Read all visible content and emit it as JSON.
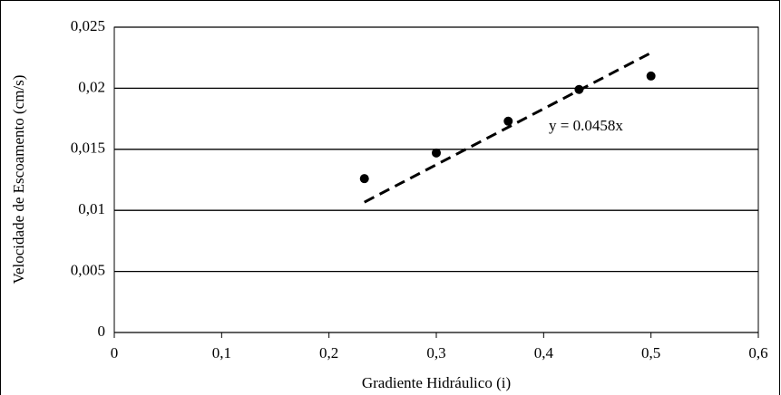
{
  "chart_data": {
    "type": "scatter",
    "x_label": "Gradiente Hidráulico (i)",
    "y_label": "Velocidade de Escoamento (cm/s)",
    "x": [
      0.233,
      0.3,
      0.367,
      0.433,
      0.5
    ],
    "values": [
      0.0126,
      0.0147,
      0.0173,
      0.0199,
      0.021
    ],
    "color": "#000000",
    "trendline": {
      "slope": 0.0458,
      "x": [
        0.233,
        0.5
      ],
      "label": "y = 0.0458x"
    },
    "xlim": [
      0,
      0.6
    ],
    "xticks": [
      0,
      {
        "value": 0.1,
        "label": "0,1"
      },
      {
        "value": 0.2,
        "label": "0,2"
      },
      {
        "value": 0.3,
        "label": "0,3"
      },
      {
        "value": 0.4,
        "label": "0,4"
      },
      {
        "value": 0.5,
        "label": "0,5"
      },
      {
        "value": 0.6,
        "label": "0,6"
      }
    ],
    "ylim": [
      0,
      0.025
    ],
    "yticks": [
      0,
      {
        "value": 0.005,
        "label": "0,005"
      },
      {
        "value": 0.01,
        "label": "0,01"
      },
      {
        "value": 0.015,
        "label": "0,015"
      },
      {
        "value": 0.02,
        "label": "0,02"
      },
      {
        "value": 0.025,
        "label": "0,025"
      }
    ],
    "grid": true
  }
}
